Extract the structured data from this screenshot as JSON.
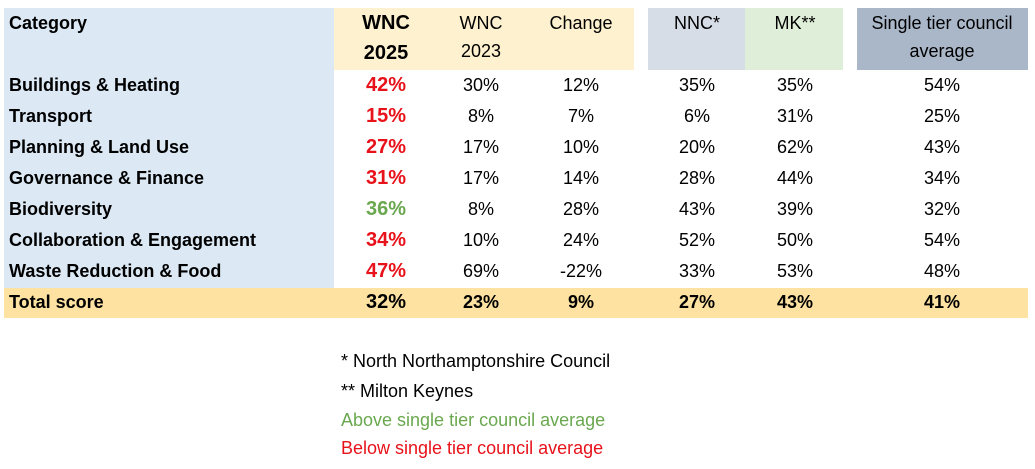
{
  "header": {
    "category": "Category",
    "wnc2025_line1": "WNC",
    "wnc2025_line2": "2025",
    "wnc2023_line1": "WNC",
    "wnc2023_line2": "2023",
    "change": "Change",
    "nnc": "NNC*",
    "mk": "MK**",
    "avg_line1": "Single tier council",
    "avg_line2": "average"
  },
  "rows": [
    {
      "category": "Buildings & Heating",
      "wnc2025": "42%",
      "wnc2025_status": "below",
      "wnc2023": "30%",
      "change": "12%",
      "nnc": "35%",
      "mk": "35%",
      "avg": "54%"
    },
    {
      "category": "Transport",
      "wnc2025": "15%",
      "wnc2025_status": "below",
      "wnc2023": "8%",
      "change": "7%",
      "nnc": "6%",
      "mk": "31%",
      "avg": "25%"
    },
    {
      "category": "Planning & Land Use",
      "wnc2025": "27%",
      "wnc2025_status": "below",
      "wnc2023": "17%",
      "change": "10%",
      "nnc": "20%",
      "mk": "62%",
      "avg": "43%"
    },
    {
      "category": "Governance & Finance",
      "wnc2025": "31%",
      "wnc2025_status": "below",
      "wnc2023": "17%",
      "change": "14%",
      "nnc": "28%",
      "mk": "44%",
      "avg": "34%"
    },
    {
      "category": "Biodiversity",
      "wnc2025": "36%",
      "wnc2025_status": "above",
      "wnc2023": "8%",
      "change": "28%",
      "nnc": "43%",
      "mk": "39%",
      "avg": "32%"
    },
    {
      "category": "Collaboration & Engagement",
      "wnc2025": "34%",
      "wnc2025_status": "below",
      "wnc2023": "10%",
      "change": "24%",
      "nnc": "52%",
      "mk": "50%",
      "avg": "54%"
    },
    {
      "category": "Waste Reduction & Food",
      "wnc2025": "47%",
      "wnc2025_status": "below",
      "wnc2023": "69%",
      "change": "-22%",
      "nnc": "33%",
      "mk": "53%",
      "avg": "48%"
    }
  ],
  "total": {
    "category": "Total score",
    "wnc2025": "32%",
    "wnc2023": "23%",
    "change": "9%",
    "nnc": "27%",
    "mk": "43%",
    "avg": "41%"
  },
  "notes": {
    "nnc_note": "* North Northamptonshire Council",
    "mk_note": "** Milton Keynes",
    "above_note": "Above single tier council average",
    "below_note": "Below single tier council average"
  },
  "colors": {
    "above": "#6aa84f",
    "below": "#e8121a",
    "category_bg": "#dce9f5",
    "wnc_bg": "#fdf1cf",
    "nnc_bg": "#d6dde6",
    "mk_bg": "#dfeed9",
    "avg_bg": "#aab7c8",
    "total_bg": "#fde2a1"
  }
}
